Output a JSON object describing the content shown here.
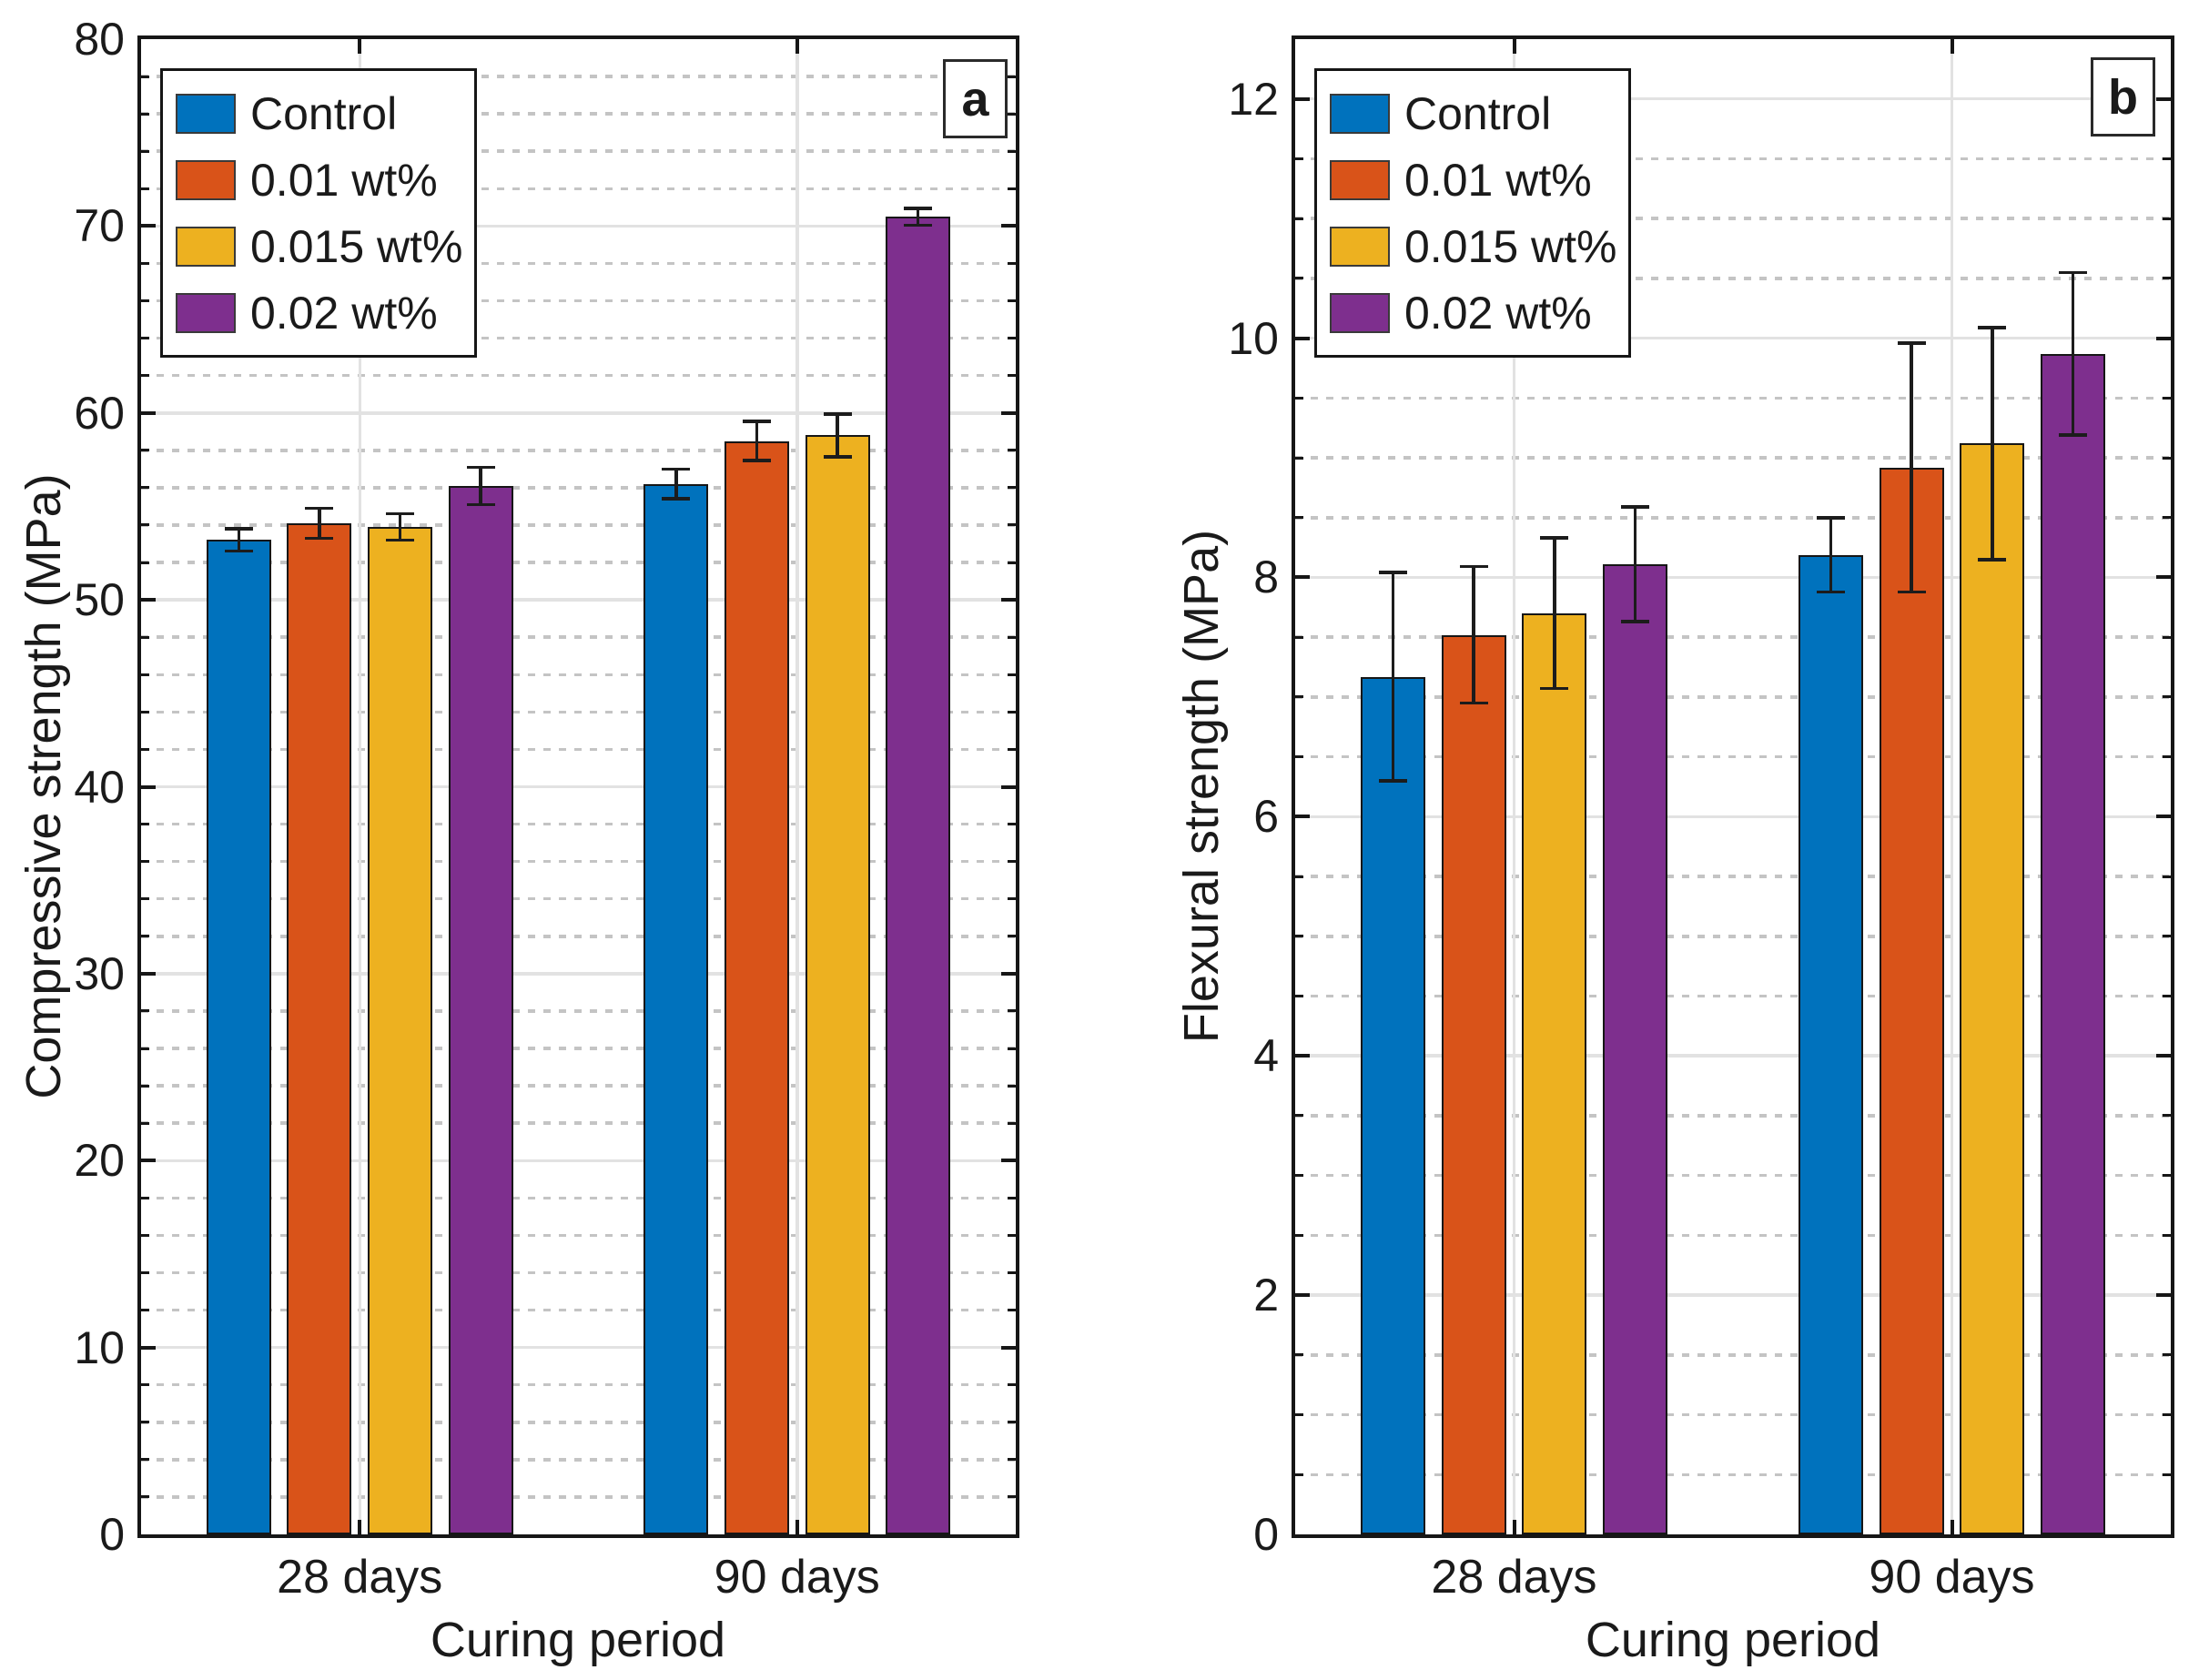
{
  "figure": {
    "background": "#ffffff",
    "frame_color": "#161616",
    "major_grid_color": "#e2e2e2",
    "minor_grid_color": "#c4c4c4",
    "error_bar_color": "#1c1c1c"
  },
  "chart_data": [
    {
      "type": "bar",
      "panel_label": "a",
      "ylabel": "Compressive strength (MPa)",
      "xlabel": "Curing period",
      "categories": [
        "28 days",
        "90 days"
      ],
      "series": [
        {
          "name": "Control",
          "color": "#0072BD",
          "values": [
            53.2,
            56.2
          ],
          "errors": [
            0.6,
            0.8
          ]
        },
        {
          "name": "0.01 wt%",
          "color": "#D95319",
          "values": [
            54.1,
            58.5
          ],
          "errors": [
            0.8,
            1.05
          ]
        },
        {
          "name": "0.015 wt%",
          "color": "#EDB120",
          "values": [
            53.9,
            58.8
          ],
          "errors": [
            0.7,
            1.15
          ]
        },
        {
          "name": "0.02 wt%",
          "color": "#7E2F8E",
          "values": [
            56.1,
            70.5
          ],
          "errors": [
            1.0,
            0.45
          ]
        }
      ],
      "ylim": [
        0,
        80
      ],
      "yticks": [
        0,
        10,
        20,
        30,
        40,
        50,
        60,
        70,
        80
      ],
      "ytick_step": 10,
      "minor_step": 2,
      "grid": "major solid + minor dotted, horizontal; vertical major at group centers",
      "legend_position": "top-left"
    },
    {
      "type": "bar",
      "panel_label": "b",
      "ylabel": "Flexural strength (MPa)",
      "xlabel": "Curing period",
      "categories": [
        "28 days",
        "90 days"
      ],
      "series": [
        {
          "name": "Control",
          "color": "#0072BD",
          "values": [
            7.17,
            8.19
          ],
          "errors": [
            0.87,
            0.31
          ]
        },
        {
          "name": "0.01 wt%",
          "color": "#D95319",
          "values": [
            7.52,
            8.92
          ],
          "errors": [
            0.57,
            1.04
          ]
        },
        {
          "name": "0.015 wt%",
          "color": "#EDB120",
          "values": [
            7.7,
            9.12
          ],
          "errors": [
            0.63,
            0.97
          ]
        },
        {
          "name": "0.02 wt%",
          "color": "#7E2F8E",
          "values": [
            8.11,
            9.87
          ],
          "errors": [
            0.48,
            0.68
          ]
        }
      ],
      "ylim": [
        0,
        12.5
      ],
      "yticks": [
        0,
        2,
        4,
        6,
        8,
        10,
        12
      ],
      "ytick_step": 2,
      "minor_step": 0.5,
      "grid": "major solid + minor dotted, horizontal; vertical major at group centers",
      "legend_position": "top-left"
    }
  ]
}
